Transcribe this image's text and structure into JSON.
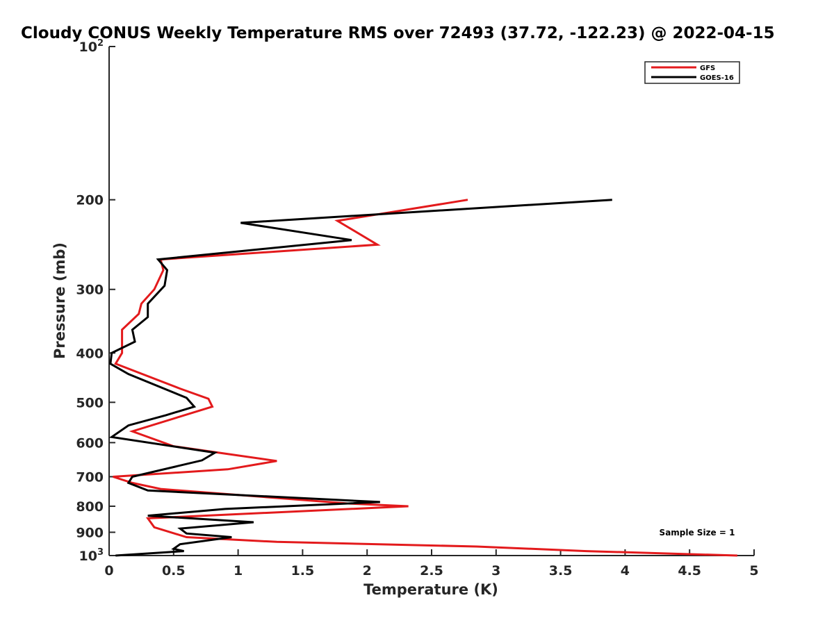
{
  "chart_data": {
    "type": "line",
    "title": "Cloudy CONUS Weekly Temperature RMS over 72493 (37.72, -122.23) @ 2022-04-15",
    "xlabel": "Temperature (K)",
    "ylabel": "Pressure (mb)",
    "xlim": [
      0,
      5
    ],
    "ylim": [
      100,
      1000
    ],
    "y_scale": "log",
    "y_reversed": true,
    "x_ticks": [
      "0",
      "0.5",
      "1",
      "1.5",
      "2",
      "2.5",
      "3",
      "3.5",
      "4",
      "4.5",
      "5"
    ],
    "y_ticks": [
      {
        "value": 100,
        "base": "10",
        "exp": "2"
      },
      {
        "value": 200,
        "label": "200"
      },
      {
        "value": 300,
        "label": "300"
      },
      {
        "value": 400,
        "label": "400"
      },
      {
        "value": 500,
        "label": "500"
      },
      {
        "value": 600,
        "label": "600"
      },
      {
        "value": 700,
        "label": "700"
      },
      {
        "value": 800,
        "label": "800"
      },
      {
        "value": 900,
        "label": "900"
      },
      {
        "value": 1000,
        "base": "10",
        "exp": "3"
      }
    ],
    "grid": false,
    "legend_position": "top-right",
    "annotation": "Sample Size = 1",
    "series": [
      {
        "name": "GFS",
        "color": "#e31a1c",
        "points": [
          [
            2.78,
            200
          ],
          [
            1.77,
            220
          ],
          [
            2.08,
            245
          ],
          [
            0.4,
            262
          ],
          [
            0.42,
            275
          ],
          [
            0.35,
            300
          ],
          [
            0.25,
            320
          ],
          [
            0.23,
            335
          ],
          [
            0.1,
            360
          ],
          [
            0.1,
            385
          ],
          [
            0.1,
            400
          ],
          [
            0.05,
            420
          ],
          [
            0.55,
            470
          ],
          [
            0.77,
            492
          ],
          [
            0.8,
            510
          ],
          [
            0.18,
            570
          ],
          [
            0.5,
            610
          ],
          [
            1.3,
            652
          ],
          [
            0.92,
            677
          ],
          [
            0.03,
            700
          ],
          [
            0.18,
            720
          ],
          [
            0.4,
            740
          ],
          [
            1.85,
            790
          ],
          [
            2.32,
            800
          ],
          [
            0.3,
            845
          ],
          [
            0.35,
            880
          ],
          [
            0.6,
            920
          ],
          [
            1.3,
            940
          ],
          [
            2.85,
            960
          ],
          [
            3.7,
            980
          ],
          [
            4.87,
            1000
          ]
        ]
      },
      {
        "name": "GOES-16",
        "color": "#000000",
        "points": [
          [
            3.9,
            200
          ],
          [
            1.02,
            222
          ],
          [
            1.88,
            240
          ],
          [
            0.38,
            262
          ],
          [
            0.45,
            275
          ],
          [
            0.43,
            295
          ],
          [
            0.3,
            320
          ],
          [
            0.3,
            340
          ],
          [
            0.18,
            360
          ],
          [
            0.2,
            380
          ],
          [
            0.02,
            400
          ],
          [
            0.01,
            420
          ],
          [
            0.15,
            440
          ],
          [
            0.6,
            490
          ],
          [
            0.66,
            510
          ],
          [
            0.44,
            530
          ],
          [
            0.15,
            555
          ],
          [
            0.02,
            585
          ],
          [
            0.82,
            628
          ],
          [
            0.72,
            650
          ],
          [
            0.18,
            700
          ],
          [
            0.15,
            720
          ],
          [
            0.3,
            745
          ],
          [
            2.1,
            785
          ],
          [
            0.9,
            810
          ],
          [
            0.3,
            835
          ],
          [
            1.12,
            860
          ],
          [
            0.55,
            885
          ],
          [
            0.6,
            905
          ],
          [
            0.95,
            920
          ],
          [
            0.55,
            950
          ],
          [
            0.5,
            970
          ],
          [
            0.58,
            980
          ],
          [
            0.05,
            1000
          ]
        ]
      }
    ]
  }
}
